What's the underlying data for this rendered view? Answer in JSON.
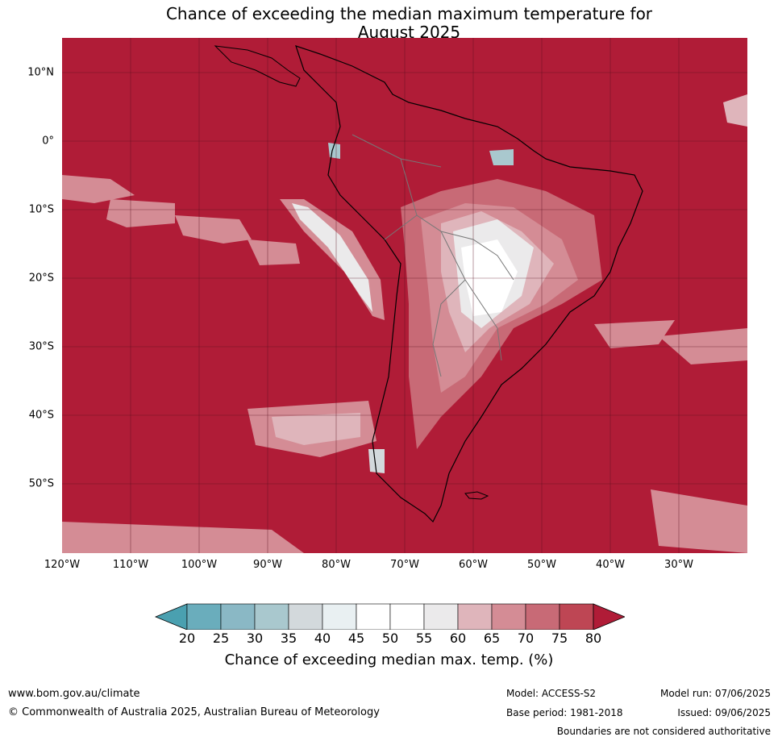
{
  "title": {
    "line1": "Chance of exceeding the median maximum temperature for",
    "line2": "August 2025"
  },
  "map": {
    "region": "South America",
    "lat_labels": [
      "10°N",
      "0°",
      "10°S",
      "20°S",
      "30°S",
      "40°S",
      "50°S"
    ],
    "lon_labels": [
      "120°W",
      "110°W",
      "100°W",
      "90°W",
      "80°W",
      "70°W",
      "60°W",
      "50°W",
      "40°W",
      "30°W"
    ],
    "background_color": "#b01c37",
    "land_outline_color": "#000000",
    "border_color": "#777777"
  },
  "colorbar": {
    "ticks": [
      "20",
      "25",
      "30",
      "35",
      "40",
      "45",
      "50",
      "55",
      "60",
      "65",
      "70",
      "75",
      "80"
    ],
    "colors": [
      "#4aa0b0",
      "#6aadbc",
      "#8ab8c5",
      "#a9c8ce",
      "#d3d9dc",
      "#e9f0f2",
      "#ffffff",
      "#ffffff",
      "#ebeaeb",
      "#dfb5bb",
      "#d48c95",
      "#c86a76",
      "#be4654",
      "#b01c37"
    ],
    "label": "Chance of exceeding median max. temp. (%)"
  },
  "footer": {
    "website": "www.bom.gov.au/climate",
    "copyright": "© Commonwealth of Australia 2025, Australian Bureau of Meteorology",
    "model": "Model: ACCESS-S2",
    "base_period": "Base period: 1981-2018",
    "model_run": "Model run: 07/06/2025",
    "issued": "Issued: 09/06/2025",
    "disclaimer": "Boundaries are not considered authoritative"
  }
}
